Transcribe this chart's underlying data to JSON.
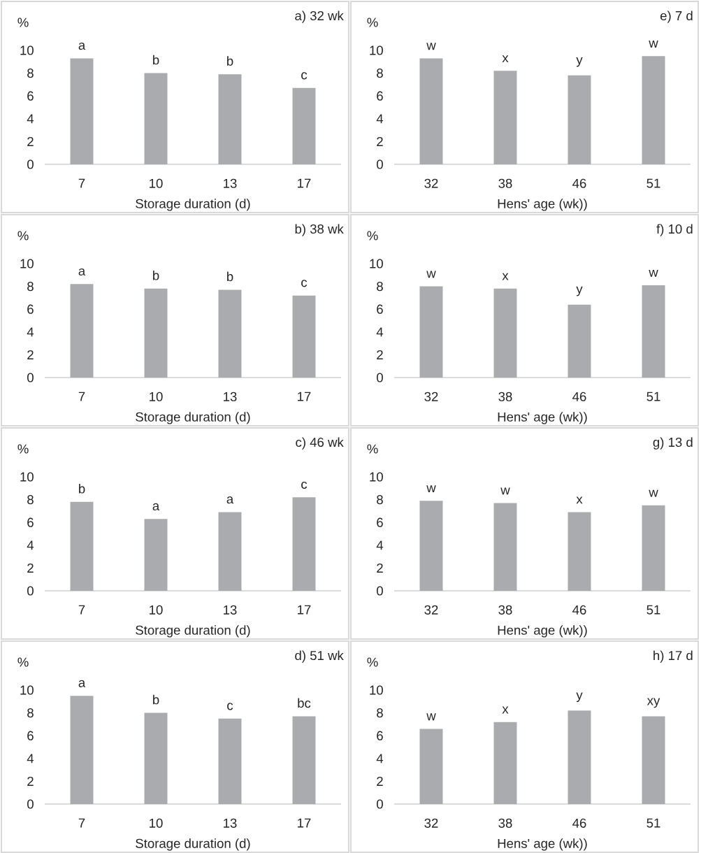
{
  "chart_data": [
    {
      "type": "bar",
      "title": "a) 32 wk",
      "xlabel": "Storage duration (d)",
      "ylabel": "%",
      "categories": [
        "7",
        "10",
        "13",
        "17"
      ],
      "values": [
        9.3,
        8.0,
        7.9,
        6.7
      ],
      "color": "#aaabae",
      "ylim": [
        0,
        10
      ],
      "yticks": [
        0,
        2,
        4,
        6,
        8,
        10
      ],
      "annotations": [
        {
          "text": "a",
          "x": "7",
          "y": 9.3
        },
        {
          "text": "b",
          "x": "10",
          "y": 8.0
        },
        {
          "text": "b",
          "x": "13",
          "y": 7.9
        },
        {
          "text": "c",
          "x": "17",
          "y": 6.7
        }
      ]
    },
    {
      "type": "bar",
      "title": "e) 7 d",
      "xlabel": "Hens' age (wk))",
      "ylabel": "%",
      "categories": [
        "32",
        "38",
        "46",
        "51"
      ],
      "values": [
        9.3,
        8.2,
        7.8,
        9.5
      ],
      "color": "#aaabae",
      "ylim": [
        0,
        10
      ],
      "yticks": [
        0,
        2,
        4,
        6,
        8,
        10
      ],
      "annotations": [
        {
          "text": "w",
          "x": "32",
          "y": 9.3
        },
        {
          "text": "x",
          "x": "38",
          "y": 8.2
        },
        {
          "text": "y",
          "x": "46",
          "y": 7.8
        },
        {
          "text": "w",
          "x": "51",
          "y": 9.5
        }
      ]
    },
    {
      "type": "bar",
      "title": "b) 38 wk",
      "xlabel": "Storage duration (d)",
      "ylabel": "%",
      "categories": [
        "7",
        "10",
        "13",
        "17"
      ],
      "values": [
        8.2,
        7.8,
        7.7,
        7.2
      ],
      "color": "#aaabae",
      "ylim": [
        0,
        10
      ],
      "yticks": [
        0,
        2,
        4,
        6,
        8,
        10
      ],
      "annotations": [
        {
          "text": "a",
          "x": "7",
          "y": 8.2
        },
        {
          "text": "b",
          "x": "10",
          "y": 7.8
        },
        {
          "text": "b",
          "x": "13",
          "y": 7.7
        },
        {
          "text": "c",
          "x": "17",
          "y": 7.2
        }
      ]
    },
    {
      "type": "bar",
      "title": "f) 10 d",
      "xlabel": "Hens' age (wk))",
      "ylabel": "%",
      "categories": [
        "32",
        "38",
        "46",
        "51"
      ],
      "values": [
        8.0,
        7.8,
        6.4,
        8.1
      ],
      "color": "#aaabae",
      "ylim": [
        0,
        10
      ],
      "yticks": [
        0,
        2,
        4,
        6,
        8,
        10
      ],
      "annotations": [
        {
          "text": "w",
          "x": "32",
          "y": 8.0
        },
        {
          "text": "x",
          "x": "38",
          "y": 7.8
        },
        {
          "text": "y",
          "x": "46",
          "y": 6.4
        },
        {
          "text": "w",
          "x": "51",
          "y": 8.1
        }
      ]
    },
    {
      "type": "bar",
      "title": "c) 46 wk",
      "xlabel": "Storage duration (d)",
      "ylabel": "%",
      "categories": [
        "7",
        "10",
        "13",
        "17"
      ],
      "values": [
        7.8,
        6.3,
        6.9,
        8.2
      ],
      "color": "#aaabae",
      "ylim": [
        0,
        10
      ],
      "yticks": [
        0,
        2,
        4,
        6,
        8,
        10
      ],
      "annotations": [
        {
          "text": "b",
          "x": "7",
          "y": 7.8
        },
        {
          "text": "a",
          "x": "10",
          "y": 6.3
        },
        {
          "text": "a",
          "x": "13",
          "y": 6.9
        },
        {
          "text": "c",
          "x": "17",
          "y": 8.2
        }
      ]
    },
    {
      "type": "bar",
      "title": "g) 13 d",
      "xlabel": "Hens' age (wk))",
      "ylabel": "%",
      "categories": [
        "32",
        "38",
        "46",
        "51"
      ],
      "values": [
        7.9,
        7.7,
        6.9,
        7.5
      ],
      "color": "#aaabae",
      "ylim": [
        0,
        10
      ],
      "yticks": [
        0,
        2,
        4,
        6,
        8,
        10
      ],
      "annotations": [
        {
          "text": "w",
          "x": "32",
          "y": 7.9
        },
        {
          "text": "w",
          "x": "38",
          "y": 7.7
        },
        {
          "text": "x",
          "x": "46",
          "y": 6.9
        },
        {
          "text": "w",
          "x": "51",
          "y": 7.5
        }
      ]
    },
    {
      "type": "bar",
      "title": "d) 51 wk",
      "xlabel": "Storage duration (d)",
      "ylabel": "%",
      "categories": [
        "7",
        "10",
        "13",
        "17"
      ],
      "values": [
        9.5,
        8.0,
        7.5,
        7.7
      ],
      "color": "#aaabae",
      "ylim": [
        0,
        10
      ],
      "yticks": [
        0,
        2,
        4,
        6,
        8,
        10
      ],
      "annotations": [
        {
          "text": "a",
          "x": "7",
          "y": 9.5
        },
        {
          "text": "b",
          "x": "10",
          "y": 8.0
        },
        {
          "text": "c",
          "x": "13",
          "y": 7.5
        },
        {
          "text": "bc",
          "x": "17",
          "y": 7.7
        }
      ]
    },
    {
      "type": "bar",
      "title": "h) 17 d",
      "xlabel": "Hens' age (wk))",
      "ylabel": "%",
      "categories": [
        "32",
        "38",
        "46",
        "51"
      ],
      "values": [
        6.6,
        7.2,
        8.2,
        7.7
      ],
      "color": "#aaabae",
      "ylim": [
        0,
        10
      ],
      "yticks": [
        0,
        2,
        4,
        6,
        8,
        10
      ],
      "annotations": [
        {
          "text": "w",
          "x": "32",
          "y": 6.6
        },
        {
          "text": "x",
          "x": "38",
          "y": 7.2
        },
        {
          "text": "y",
          "x": "46",
          "y": 8.2
        },
        {
          "text": "xy",
          "x": "51",
          "y": 7.7
        }
      ]
    }
  ]
}
